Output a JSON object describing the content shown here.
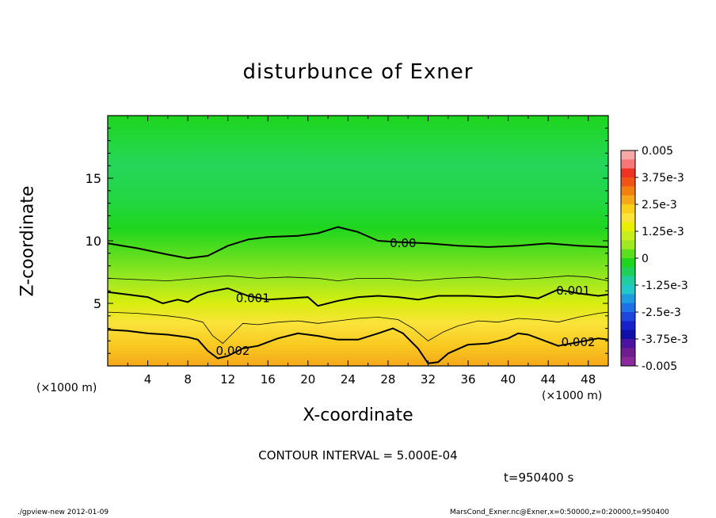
{
  "chart_data": {
    "type": "heatmap",
    "subtype": "filled-contour",
    "title": "disturbunce of Exner",
    "xlabel": "X-coordinate",
    "ylabel": "Z-coordinate",
    "x_unit_label": "(×1000 m)",
    "xlim": [
      0,
      50
    ],
    "ylim": [
      0,
      20
    ],
    "x_ticks": [
      "4",
      "8",
      "12",
      "16",
      "20",
      "24",
      "28",
      "32",
      "36",
      "40",
      "44",
      "48"
    ],
    "x_tick_values": [
      4,
      8,
      12,
      16,
      20,
      24,
      28,
      32,
      36,
      40,
      44,
      48
    ],
    "y_ticks": [
      "5",
      "10",
      "15"
    ],
    "y_tick_values": [
      5,
      10,
      15
    ],
    "contour_interval_text": "CONTOUR INTERVAL = 5.000E-04",
    "time_text": "t=950400 s",
    "colorbar": {
      "labels": [
        "0.005",
        "3.75e-3",
        "2.5e-3",
        "1.25e-3",
        "0",
        "-1.25e-3",
        "-2.5e-3",
        "-3.75e-3",
        "-0.005"
      ],
      "label_values": [
        0.005,
        0.00375,
        0.0025,
        0.00125,
        0,
        -0.00125,
        -0.0025,
        -0.00375,
        -0.005
      ],
      "colors_top_to_bottom": [
        "#f7a7a7",
        "#f77777",
        "#ee3322",
        "#f05418",
        "#f27f10",
        "#f5a81a",
        "#f9cf17",
        "#fbe33a",
        "#e8f000",
        "#c8ec1c",
        "#a0e820",
        "#5ade1e",
        "#1ed61e",
        "#1ed05a",
        "#20cca0",
        "#22c8c8",
        "#1e9ce0",
        "#1e72e6",
        "#1e46dc",
        "#1622c8",
        "#1010a8",
        "#4a14a0",
        "#6e1e8e",
        "#8a2a9a"
      ]
    },
    "contour_labels": [
      {
        "text": "0.00",
        "x": 29.5,
        "y": 9.8
      },
      {
        "text": "0.001",
        "x": 14.5,
        "y": 5.4
      },
      {
        "text": "0.001",
        "x": 46.5,
        "y": 6.0
      },
      {
        "text": "0.002",
        "x": 12.5,
        "y": 1.2
      },
      {
        "text": "0.002",
        "x": 47.0,
        "y": 1.9
      }
    ],
    "contours": [
      {
        "level": 0.0,
        "bold": true,
        "points": [
          [
            0,
            9.8
          ],
          [
            3,
            9.4
          ],
          [
            6,
            8.9
          ],
          [
            8,
            8.6
          ],
          [
            10,
            8.8
          ],
          [
            12,
            9.6
          ],
          [
            14,
            10.1
          ],
          [
            16,
            10.3
          ],
          [
            19,
            10.4
          ],
          [
            21,
            10.6
          ],
          [
            23,
            11.1
          ],
          [
            25,
            10.7
          ],
          [
            27,
            10.0
          ],
          [
            29,
            9.9
          ],
          [
            32,
            9.8
          ],
          [
            35,
            9.6
          ],
          [
            38,
            9.5
          ],
          [
            41,
            9.6
          ],
          [
            44,
            9.8
          ],
          [
            47,
            9.6
          ],
          [
            50,
            9.5
          ]
        ]
      },
      {
        "level": 0.0005,
        "bold": false,
        "points": [
          [
            0,
            7.0
          ],
          [
            3,
            6.9
          ],
          [
            6,
            6.8
          ],
          [
            9,
            7.0
          ],
          [
            12,
            7.2
          ],
          [
            15,
            7.0
          ],
          [
            18,
            7.1
          ],
          [
            21,
            7.0
          ],
          [
            23,
            6.8
          ],
          [
            25,
            7.0
          ],
          [
            28,
            7.0
          ],
          [
            31,
            6.8
          ],
          [
            34,
            7.0
          ],
          [
            37,
            7.1
          ],
          [
            40,
            6.9
          ],
          [
            43,
            7.0
          ],
          [
            46,
            7.2
          ],
          [
            48,
            7.1
          ],
          [
            50,
            6.8
          ]
        ]
      },
      {
        "level": 0.001,
        "bold": true,
        "points": [
          [
            0,
            5.9
          ],
          [
            2,
            5.7
          ],
          [
            4,
            5.5
          ],
          [
            5.5,
            5.0
          ],
          [
            7,
            5.3
          ],
          [
            8,
            5.1
          ],
          [
            9,
            5.6
          ],
          [
            10,
            5.9
          ],
          [
            12,
            6.2
          ],
          [
            14,
            5.6
          ],
          [
            16,
            5.3
          ],
          [
            18,
            5.4
          ],
          [
            20,
            5.5
          ],
          [
            21,
            4.8
          ],
          [
            23,
            5.2
          ],
          [
            25,
            5.5
          ],
          [
            27,
            5.6
          ],
          [
            29,
            5.5
          ],
          [
            31,
            5.3
          ],
          [
            33,
            5.6
          ],
          [
            36,
            5.6
          ],
          [
            39,
            5.5
          ],
          [
            41,
            5.6
          ],
          [
            43,
            5.4
          ],
          [
            45,
            6.1
          ],
          [
            47,
            5.8
          ],
          [
            49,
            5.6
          ],
          [
            50,
            5.7
          ]
        ]
      },
      {
        "level": 0.0015,
        "bold": false,
        "points": [
          [
            0,
            4.3
          ],
          [
            3,
            4.2
          ],
          [
            6,
            4.0
          ],
          [
            8,
            3.8
          ],
          [
            9.5,
            3.5
          ],
          [
            10.5,
            2.4
          ],
          [
            11.5,
            1.8
          ],
          [
            12.5,
            2.6
          ],
          [
            13.5,
            3.4
          ],
          [
            15,
            3.3
          ],
          [
            17,
            3.5
          ],
          [
            19,
            3.6
          ],
          [
            21,
            3.4
          ],
          [
            23,
            3.6
          ],
          [
            25,
            3.8
          ],
          [
            27,
            3.9
          ],
          [
            29,
            3.7
          ],
          [
            30.5,
            3.0
          ],
          [
            32,
            2.0
          ],
          [
            33.5,
            2.7
          ],
          [
            35,
            3.2
          ],
          [
            37,
            3.6
          ],
          [
            39,
            3.5
          ],
          [
            41,
            3.8
          ],
          [
            43,
            3.7
          ],
          [
            45,
            3.5
          ],
          [
            47,
            3.9
          ],
          [
            49,
            4.2
          ],
          [
            50,
            4.3
          ]
        ]
      },
      {
        "level": 0.002,
        "bold": true,
        "points": [
          [
            0,
            2.9
          ],
          [
            2,
            2.8
          ],
          [
            4,
            2.6
          ],
          [
            6,
            2.5
          ],
          [
            8,
            2.3
          ],
          [
            9,
            2.1
          ],
          [
            10,
            1.2
          ],
          [
            11,
            0.6
          ],
          [
            12,
            0.8
          ],
          [
            13.5,
            1.4
          ],
          [
            15,
            1.6
          ],
          [
            17,
            2.2
          ],
          [
            19,
            2.6
          ],
          [
            21,
            2.4
          ],
          [
            23,
            2.1
          ],
          [
            25,
            2.1
          ],
          [
            27,
            2.6
          ],
          [
            28.5,
            3.0
          ],
          [
            29.5,
            2.6
          ],
          [
            31,
            1.4
          ],
          [
            32,
            0.2
          ],
          [
            33,
            0.3
          ],
          [
            34,
            1.0
          ],
          [
            36,
            1.7
          ],
          [
            38,
            1.8
          ],
          [
            40,
            2.2
          ],
          [
            41,
            2.6
          ],
          [
            42,
            2.5
          ],
          [
            43,
            2.2
          ],
          [
            45,
            1.6
          ],
          [
            47,
            1.9
          ],
          [
            49,
            2.2
          ],
          [
            50,
            2.1
          ]
        ]
      }
    ]
  },
  "footer": {
    "left": "./gpview-new   2012-01-09",
    "right": "MarsCond_Exner.nc@Exner,x=0:50000,z=0:20000,t=950400"
  }
}
